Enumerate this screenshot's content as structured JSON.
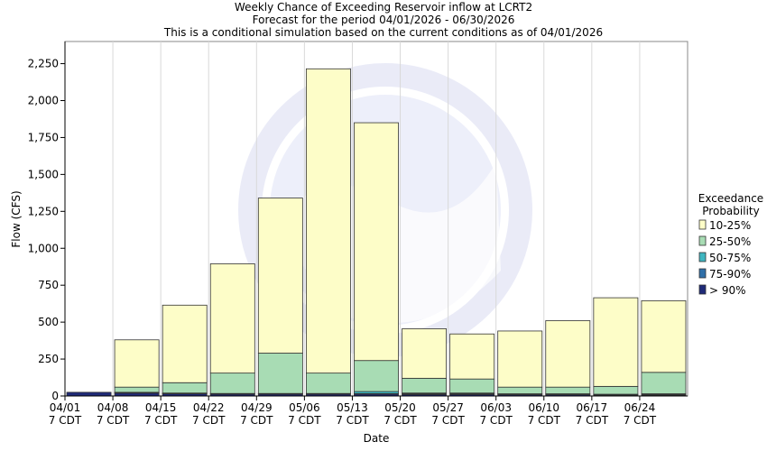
{
  "chart_data": {
    "type": "bar",
    "stacked": true,
    "title": [
      "Weekly Chance of Exceeding Reservoir inflow at LCRT2",
      "Forecast for the period 04/01/2026 - 06/30/2026",
      "This is a conditional simulation based on the current conditions as of 04/01/2026"
    ],
    "xlabel": "Date",
    "ylabel": "Flow (CFS)",
    "ylim": [
      0,
      2400
    ],
    "y_ticks": [
      0,
      250,
      500,
      750,
      1000,
      1250,
      1500,
      1750,
      2000,
      2250
    ],
    "y_tick_labels": [
      "0",
      "250",
      "500",
      "750",
      "1,000",
      "1,250",
      "1,500",
      "1,750",
      "2,000",
      "2,250"
    ],
    "grid": "vertical",
    "categories": [
      "04/01",
      "04/08",
      "04/15",
      "04/22",
      "04/29",
      "05/06",
      "05/13",
      "05/20",
      "05/27",
      "06/03",
      "06/10",
      "06/17",
      "06/24"
    ],
    "x_sublabel": "7 CDT",
    "series": [
      {
        "name": "> 90%",
        "color": "#1f2a78",
        "values": [
          25,
          20,
          15,
          12,
          12,
          12,
          12,
          10,
          10,
          8,
          8,
          6,
          6
        ]
      },
      {
        "name": "75-90%",
        "color": "#2f6fa8",
        "values": [
          0,
          2,
          2,
          2,
          2,
          2,
          4,
          5,
          5,
          4,
          4,
          3,
          4
        ]
      },
      {
        "name": "50-75%",
        "color": "#3fb6c0",
        "values": [
          0,
          3,
          3,
          3,
          3,
          3,
          14,
          5,
          5,
          3,
          3,
          3,
          5
        ]
      },
      {
        "name": "25-50%",
        "color": "#a8dcb4",
        "values": [
          0,
          35,
          70,
          138,
          273,
          138,
          210,
          100,
          95,
          45,
          45,
          53,
          145
        ]
      },
      {
        "name": "10-25%",
        "color": "#fdfdc8",
        "values": [
          0,
          320,
          525,
          740,
          1050,
          2060,
          1610,
          335,
          305,
          380,
          450,
          600,
          485
        ]
      }
    ],
    "legend": {
      "title": [
        "Exceedance",
        "Probability"
      ],
      "placement": "right",
      "order": [
        "10-25%",
        "25-50%",
        "50-75%",
        "75-90%",
        "> 90%"
      ]
    }
  }
}
